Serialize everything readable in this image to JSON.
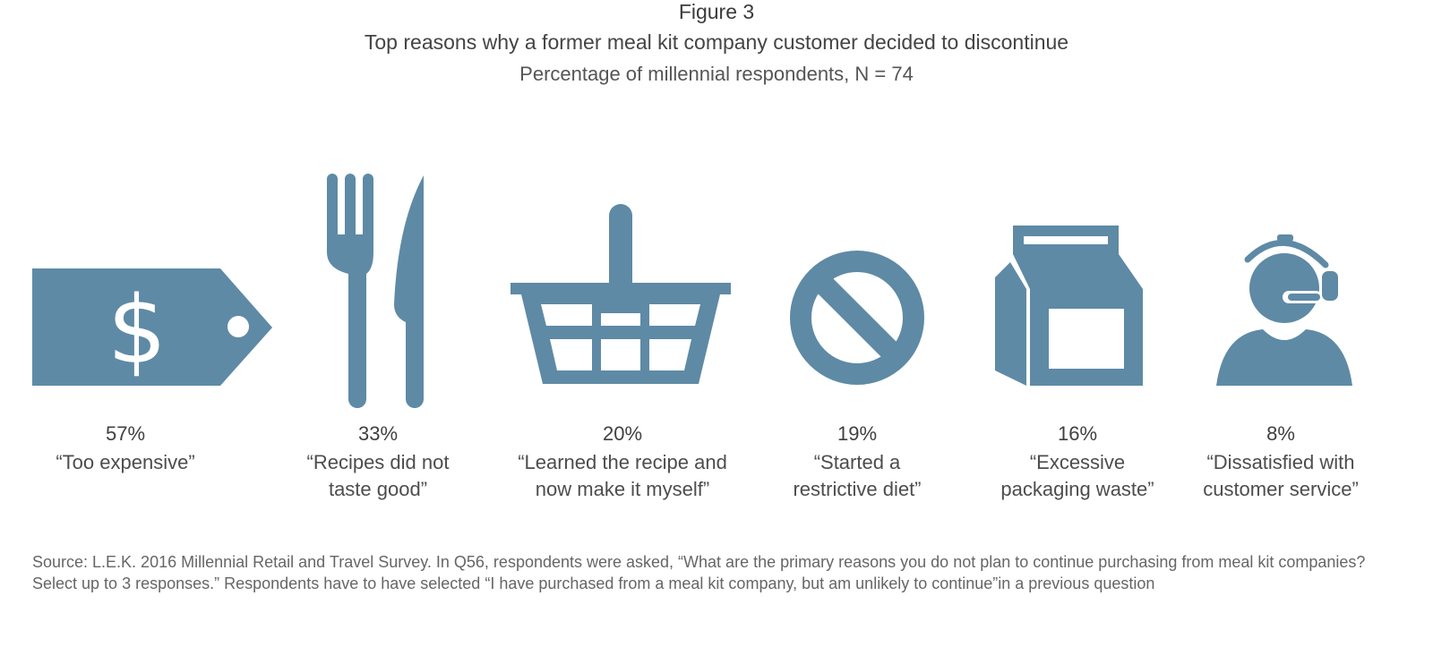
{
  "header": {
    "figure_label": "Figure 3",
    "title": "Top reasons why a former meal kit company customer decided to discontinue",
    "subtitle": "Percentage of millennial respondents, N = 74"
  },
  "colors": {
    "icon": "#5e8aa6",
    "text": "#4a4a4a"
  },
  "chart_data": {
    "type": "bar",
    "title": "Top reasons why a former meal kit company customer decided to discontinue",
    "subtitle": "Percentage of millennial respondents, N = 74",
    "categories": [
      "“Too expensive”",
      "“Recipes did not taste good”",
      "“Learned the recipe and now make it myself”",
      "“Started a restrictive diet”",
      "“Excessive packaging waste”",
      "“Dissatisfied with customer service”"
    ],
    "values": [
      57,
      33,
      20,
      19,
      16,
      8
    ],
    "unit": "%"
  },
  "items": [
    {
      "pct": "57%",
      "label": "“Too expensive”",
      "icon": "price-tag-icon"
    },
    {
      "pct": "33%",
      "label": "“Recipes did not\ntaste good”",
      "icon": "fork-knife-icon"
    },
    {
      "pct": "20%",
      "label": "“Learned the recipe and\nnow make it myself”",
      "icon": "basket-icon"
    },
    {
      "pct": "19%",
      "label": "“Started a\nrestrictive diet”",
      "icon": "prohibited-icon"
    },
    {
      "pct": "16%",
      "label": "“Excessive\npackaging waste”",
      "icon": "package-icon"
    },
    {
      "pct": "8%",
      "label": "“Dissatisfied with\ncustomer service”",
      "icon": "customer-service-icon"
    }
  ],
  "source": "Source: L.E.K. 2016 Millennial Retail and Travel Survey. In Q56, respondents were asked, “What are the primary reasons you do not plan to continue purchasing from meal kit companies? Select up to 3 responses.” Respondents have to have selected “I have purchased from a meal kit company, but am unlikely to continue”in a previous question"
}
